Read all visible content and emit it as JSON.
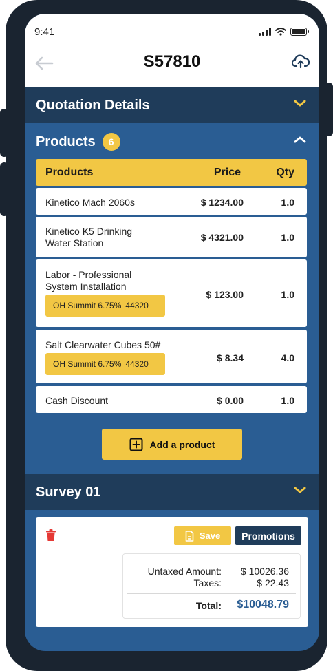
{
  "status": {
    "time": "9:41"
  },
  "header": {
    "title": "S57810",
    "back_icon": "arrow-left-icon",
    "upload_icon": "cloud-upload-icon"
  },
  "sections": {
    "quotation": {
      "label": "Quotation Details"
    },
    "products": {
      "label": "Products",
      "count": "6"
    },
    "survey": {
      "label": "Survey 01"
    }
  },
  "table": {
    "headers": {
      "product": "Products",
      "price": "Price",
      "qty": "Qty"
    },
    "rows": [
      {
        "name": "Kinetico Mach 2060s",
        "price": "$ 1234.00",
        "qty": "1.0"
      },
      {
        "name_line1": "Kinetico K5 Drinking",
        "name_line2": "Water Station",
        "price": "$ 4321.00",
        "qty": "1.0"
      },
      {
        "name_line1": "Labor - Professional",
        "name_line2": "System Installation",
        "tag_tax": "OH Summit 6.75%",
        "tag_code": "44320",
        "price": "$ 123.00",
        "qty": "1.0"
      },
      {
        "name": "Salt Clearwater Cubes 50#",
        "tag_tax": "OH Summit 6.75%",
        "tag_code": "44320",
        "price": "$ 8.34",
        "qty": "4.0"
      },
      {
        "name": "Cash Discount",
        "price": "$ 0.00",
        "qty": "1.0"
      }
    ]
  },
  "actions": {
    "add_product": "Add a product",
    "save": "Save",
    "promotions": "Promotions"
  },
  "totals": {
    "untaxed_label": "Untaxed Amount:",
    "untaxed_value": "$ 10026.36",
    "taxes_label": "Taxes:",
    "taxes_value": "$ 22.43",
    "total_label": "Total:",
    "total_value": "$10048.79"
  },
  "colors": {
    "primary": "#2a5d93",
    "dark": "#1f3c5a",
    "accent": "#f2c744",
    "danger": "#e53935"
  }
}
